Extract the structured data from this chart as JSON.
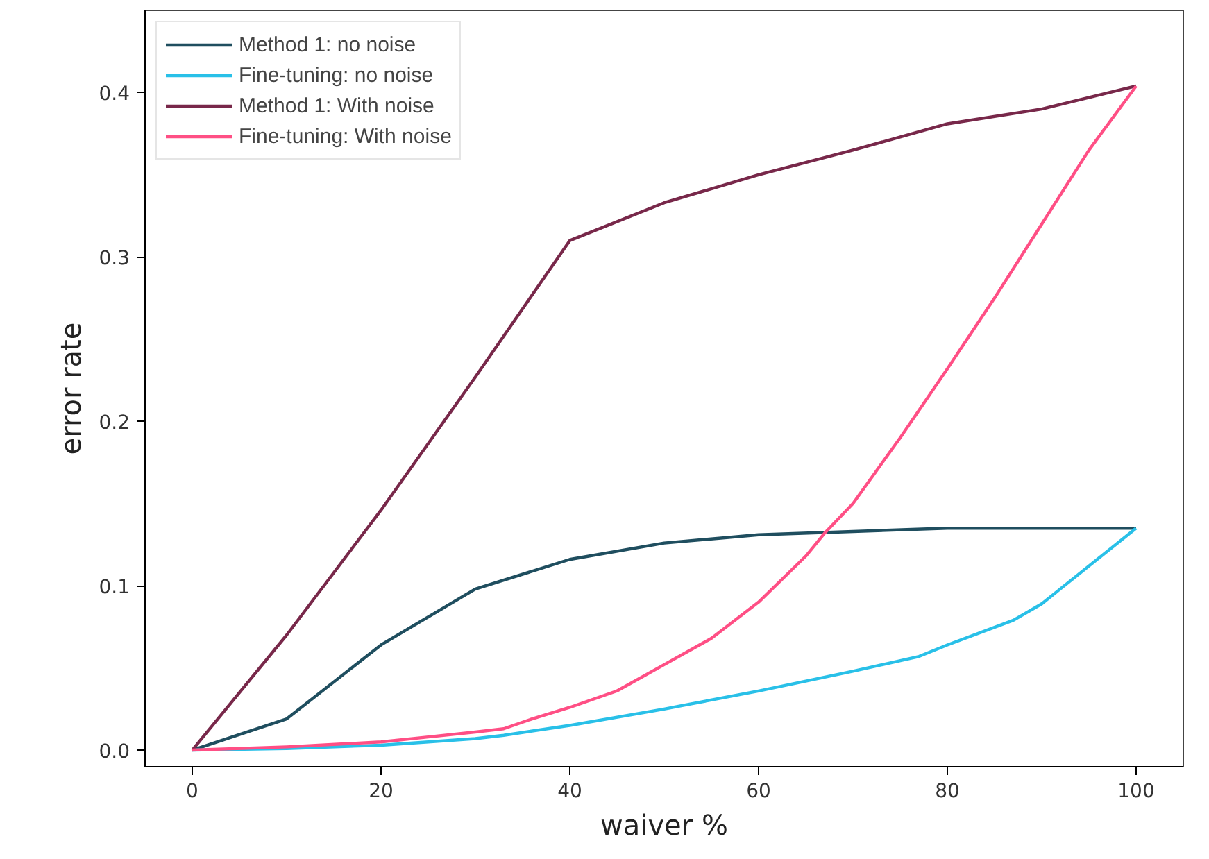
{
  "chart_data": {
    "type": "line",
    "xlabel": "waiver %",
    "ylabel": "error rate",
    "xlim": [
      -5,
      105
    ],
    "ylim": [
      -0.0101,
      0.45
    ],
    "xticks": [
      0,
      20,
      40,
      60,
      80,
      100
    ],
    "yticks": [
      {
        "value": 0,
        "label": "0.0"
      },
      0.1,
      0.2,
      0.3,
      0.4
    ],
    "legend": "top left",
    "grid": false,
    "line_style": "solid",
    "marker": "none",
    "series": [
      {
        "name": "Method 1: no noise",
        "color": "#1f4e5f",
        "x": [
          0,
          10,
          20,
          30,
          40,
          50,
          60,
          70,
          80,
          90,
          100
        ],
        "values": [
          0,
          0.019,
          0.064,
          0.098,
          0.116,
          0.126,
          0.131,
          0.133,
          0.135,
          0.135,
          0.135
        ]
      },
      {
        "name": "Fine-tuning: no noise",
        "color": "#29c0e8",
        "x": [
          0,
          10,
          20,
          30,
          33,
          40,
          50,
          60,
          70,
          77,
          80,
          87,
          90,
          100
        ],
        "values": [
          0,
          0.001,
          0.003,
          0.007,
          0.009,
          0.015,
          0.025,
          0.036,
          0.048,
          0.057,
          0.064,
          0.079,
          0.089,
          0.135
        ]
      },
      {
        "name": "Method 1: With noise",
        "color": "#78284a",
        "x": [
          0,
          10,
          20,
          30,
          40,
          50,
          60,
          70,
          80,
          90,
          100
        ],
        "values": [
          0,
          0.07,
          0.146,
          0.227,
          0.31,
          0.333,
          0.35,
          0.365,
          0.381,
          0.39,
          0.404
        ]
      },
      {
        "name": "Fine-tuning: With noise",
        "color": "#ff4f85",
        "x": [
          0,
          10,
          20,
          25,
          30,
          33,
          36,
          40,
          45,
          50,
          55,
          60,
          65,
          67,
          70,
          75,
          80,
          85,
          90,
          95,
          100
        ],
        "values": [
          0,
          0.002,
          0.005,
          0.008,
          0.011,
          0.013,
          0.019,
          0.026,
          0.036,
          0.052,
          0.068,
          0.09,
          0.118,
          0.132,
          0.15,
          0.19,
          0.232,
          0.275,
          0.32,
          0.365,
          0.404
        ]
      }
    ]
  }
}
